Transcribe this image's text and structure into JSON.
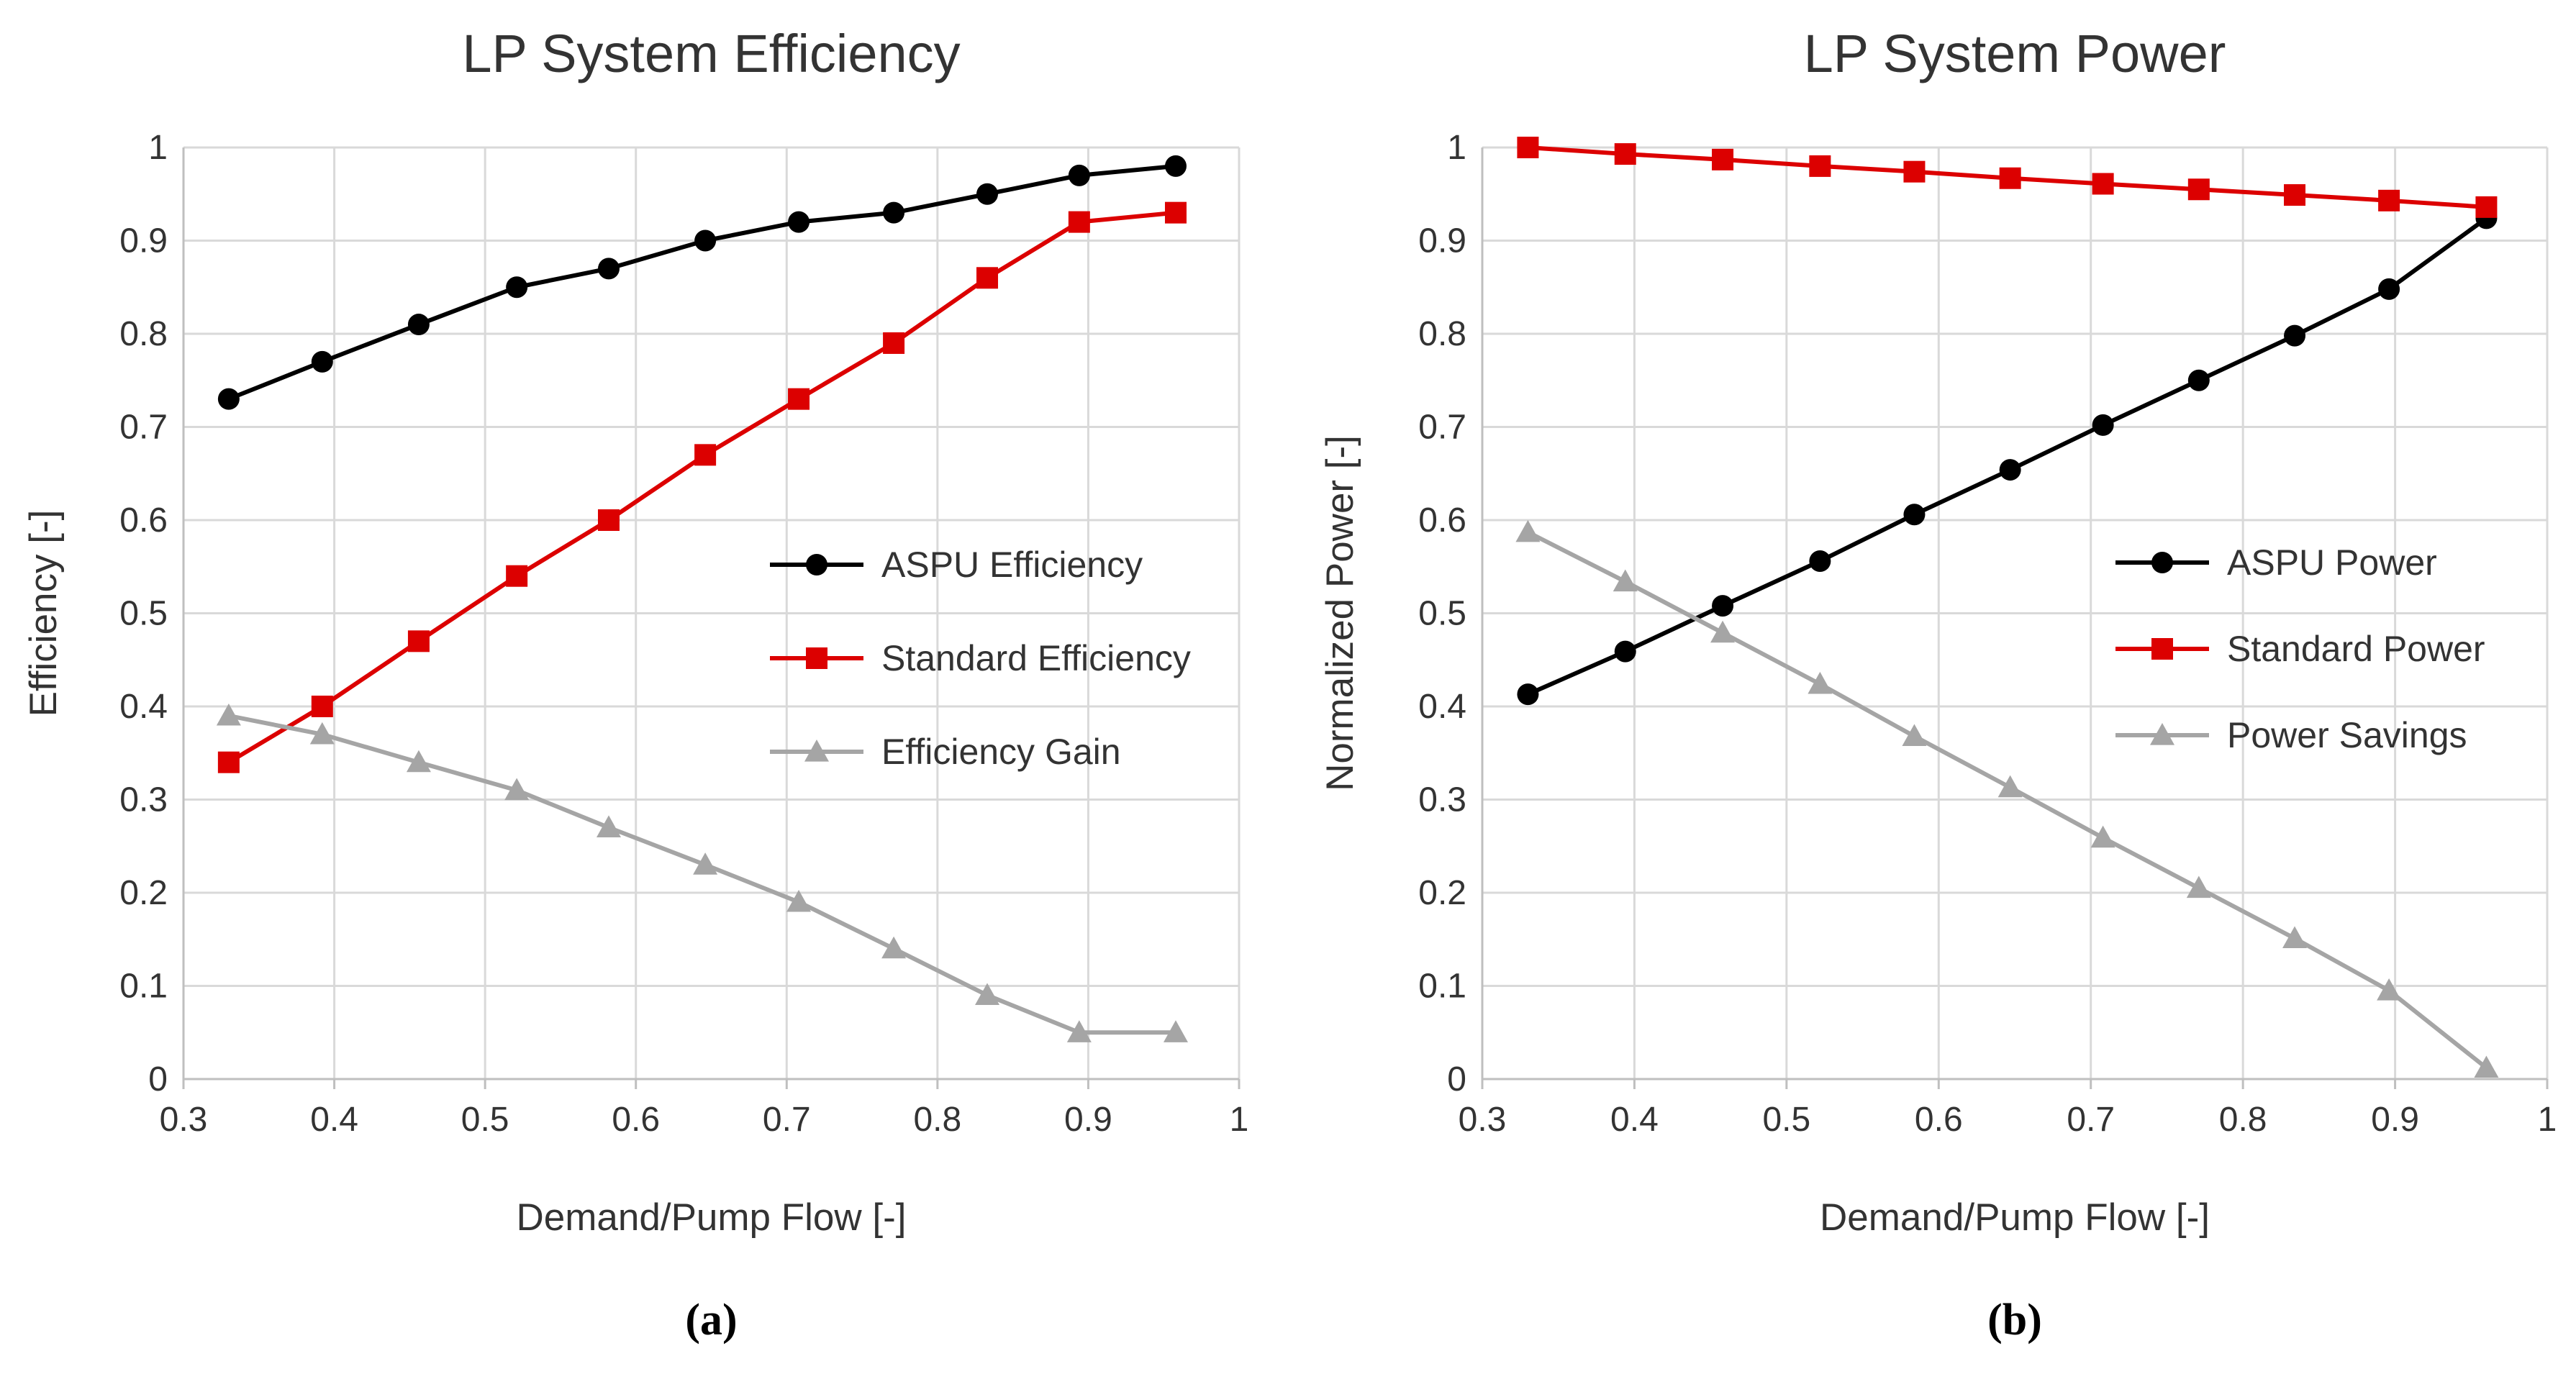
{
  "colors": {
    "aspu": "#000000",
    "standard": "#dc0000",
    "gain": "#a5a5a5"
  },
  "chart_data": [
    {
      "id": "a",
      "type": "line",
      "title": "LP System Efficiency",
      "caption": "(a)",
      "xlabel": "Demand/Pump Flow [-]",
      "ylabel": "Efficiency [-]",
      "xlim": [
        0.3,
        1
      ],
      "ylim": [
        0,
        1
      ],
      "xticks": [
        "0.3",
        "0.4",
        "0.5",
        "0.6",
        "0.7",
        "0.8",
        "0.9",
        "1"
      ],
      "yticks": [
        "0",
        "0.1",
        "0.2",
        "0.3",
        "0.4",
        "0.5",
        "0.6",
        "0.7",
        "0.8",
        "0.9",
        "1"
      ],
      "x": [
        0.33,
        0.392,
        0.456,
        0.521,
        0.582,
        0.646,
        0.708,
        0.771,
        0.833,
        0.894,
        0.958
      ],
      "series": [
        {
          "name": "ASPU Efficiency",
          "marker": "circle",
          "color": "#000000",
          "values": [
            0.73,
            0.77,
            0.81,
            0.85,
            0.87,
            0.9,
            0.92,
            0.93,
            0.95,
            0.97,
            0.98
          ]
        },
        {
          "name": "Standard Efficiency",
          "marker": "square",
          "color": "#dc0000",
          "values": [
            0.34,
            0.4,
            0.47,
            0.54,
            0.6,
            0.67,
            0.73,
            0.79,
            0.86,
            0.92,
            0.93
          ]
        },
        {
          "name": "Efficiency Gain",
          "marker": "triangle",
          "color": "#a5a5a5",
          "values": [
            0.39,
            0.37,
            0.34,
            0.31,
            0.27,
            0.23,
            0.19,
            0.14,
            0.09,
            0.05,
            0.05
          ]
        }
      ],
      "legend_position": "center-right"
    },
    {
      "id": "b",
      "type": "line",
      "title": "LP System Power",
      "caption": "(b)",
      "xlabel": "Demand/Pump Flow [-]",
      "ylabel": "Normalized Power [-]",
      "xlim": [
        0.3,
        1
      ],
      "ylim": [
        0,
        1
      ],
      "xticks": [
        "0.3",
        "0.4",
        "0.5",
        "0.6",
        "0.7",
        "0.8",
        "0.9",
        "1"
      ],
      "yticks": [
        "0",
        "0.1",
        "0.2",
        "0.3",
        "0.4",
        "0.5",
        "0.6",
        "0.7",
        "0.8",
        "0.9",
        "1"
      ],
      "x": [
        0.33,
        0.394,
        0.458,
        0.522,
        0.584,
        0.647,
        0.708,
        0.771,
        0.834,
        0.896,
        0.96
      ],
      "series": [
        {
          "name": "ASPU Power",
          "marker": "circle",
          "color": "#000000",
          "values": [
            0.413,
            0.459,
            0.508,
            0.556,
            0.606,
            0.654,
            0.702,
            0.75,
            0.798,
            0.848,
            0.924
          ]
        },
        {
          "name": "Standard Power",
          "marker": "square",
          "color": "#dc0000",
          "values": [
            1.0,
            0.993,
            0.987,
            0.98,
            0.974,
            0.967,
            0.961,
            0.955,
            0.949,
            0.943,
            0.936
          ]
        },
        {
          "name": "Power Savings",
          "marker": "triangle",
          "color": "#a5a5a5",
          "values": [
            0.587,
            0.534,
            0.479,
            0.424,
            0.368,
            0.313,
            0.259,
            0.205,
            0.151,
            0.095,
            0.012
          ]
        }
      ],
      "legend_position": "center-right"
    }
  ]
}
